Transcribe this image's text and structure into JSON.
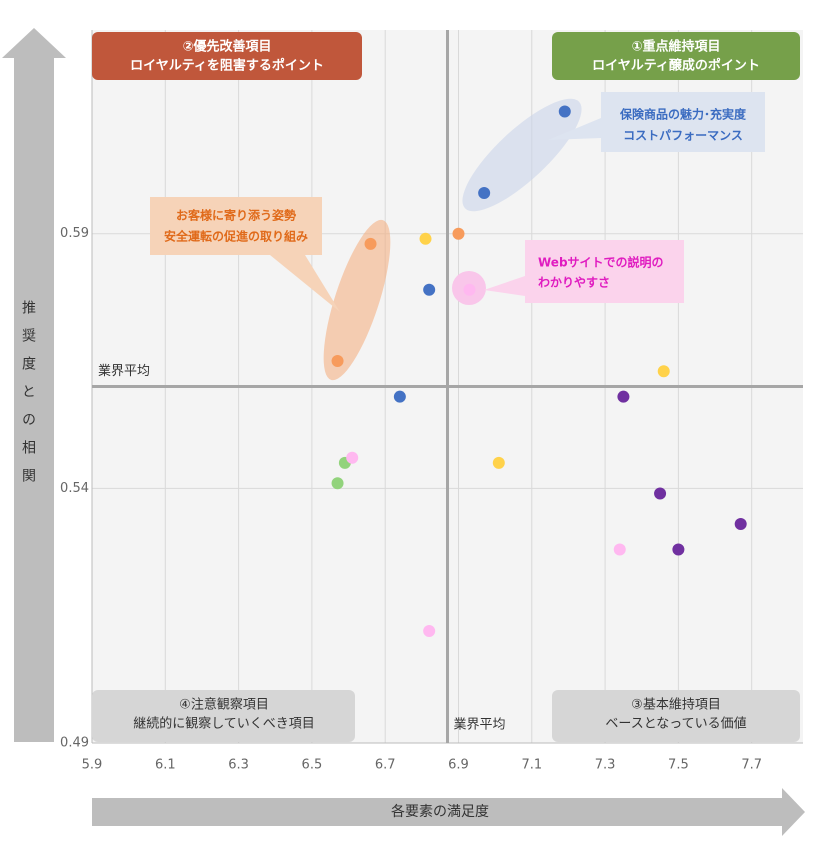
{
  "chart_data": {
    "type": "scatter",
    "x_label": "各要素の満足度",
    "y_label": "推奨度との相関",
    "xlim": [
      5.9,
      7.84
    ],
    "ylim": [
      0.49,
      0.63
    ],
    "xticks": [
      5.9,
      6.1,
      6.3,
      6.5,
      6.7,
      6.9,
      7.1,
      7.3,
      7.5,
      7.7
    ],
    "yticks": [
      0.49,
      0.54,
      0.59
    ],
    "grid": true,
    "reference_lines": {
      "label": "業界平均",
      "x": 6.87,
      "y": 0.56
    },
    "series": [
      {
        "color": "#4472c4",
        "x": [
          7.19,
          6.97,
          6.82,
          6.74
        ],
        "y": [
          0.614,
          0.598,
          0.579,
          0.558
        ]
      },
      {
        "color": "#f79b5c",
        "x": [
          6.66,
          6.9,
          6.57
        ],
        "y": [
          0.588,
          0.59,
          0.565
        ]
      },
      {
        "color": "#ffd24a",
        "x": [
          6.81,
          7.46,
          7.01
        ],
        "y": [
          0.589,
          0.563,
          0.545
        ]
      },
      {
        "color": "#7030a0",
        "x": [
          7.35,
          7.45,
          7.67,
          7.5
        ],
        "y": [
          0.558,
          0.539,
          0.533,
          0.528
        ]
      },
      {
        "color": "#92d37c",
        "x": [
          6.59,
          6.57
        ],
        "y": [
          0.545,
          0.541
        ]
      },
      {
        "color": "#ffb8f0",
        "x": [
          6.93,
          6.61,
          7.34,
          6.82
        ],
        "y": [
          0.579,
          0.546,
          0.528,
          0.512
        ]
      }
    ],
    "quadrants": [
      [
        "②優先改善項目",
        "ロイヤルティを阻害するポイント"
      ],
      [
        "①重点維持項目",
        "ロイヤルティ醸成のポイント"
      ],
      [
        "③基本維持項目",
        "ベースとなっている価値"
      ],
      [
        "④注意観察項目",
        "継続的に観察していくべき項目"
      ]
    ],
    "callouts": [
      [
        "保険商品の魅力･充実度",
        "コストパフォーマンス"
      ],
      [
        "お客様に寄り添う姿勢",
        "安全運転の促進の取り組み"
      ],
      [
        "Webサイトでの説明の",
        "わかりやすさ"
      ]
    ]
  }
}
